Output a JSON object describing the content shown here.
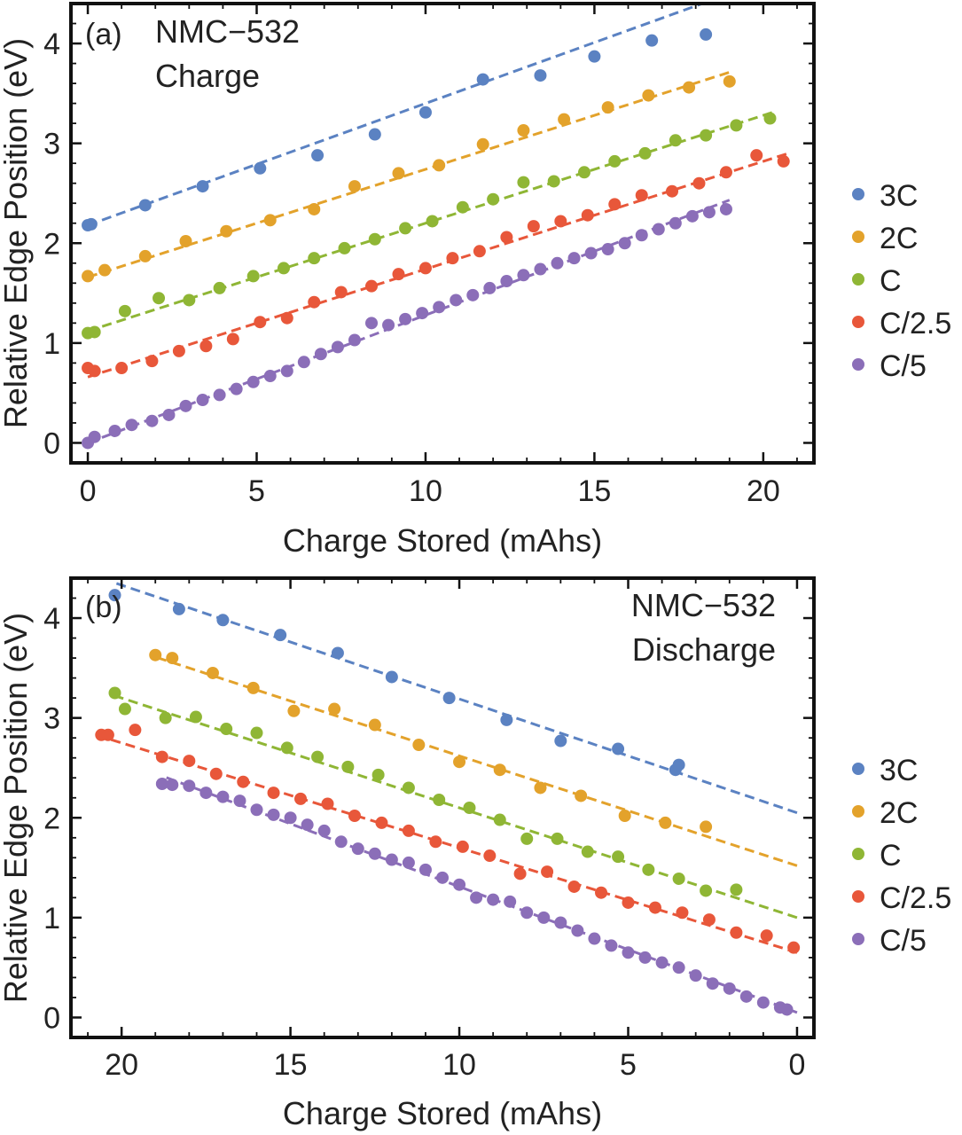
{
  "chart_data": [
    {
      "type": "scatter",
      "panel_label": "(a)",
      "annotation": [
        "NMC−532",
        "Charge"
      ],
      "xlabel": "Charge Stored (mAhs)",
      "ylabel": "Relative Edge Position (eV)",
      "xlim": [
        -0.5,
        21.5
      ],
      "ylim": [
        -0.2,
        4.4
      ],
      "x_reversed": false,
      "xticks": [
        0,
        5,
        10,
        15,
        20
      ],
      "yticks": [
        0,
        1,
        2,
        3,
        4
      ],
      "legend_position": "right",
      "series": [
        {
          "name": "3C",
          "color": "#5b82c2",
          "fit": [
            2.18,
            0.122
          ],
          "x": [
            0,
            0.1,
            1.7,
            3.4,
            5.1,
            6.8,
            8.5,
            10.0,
            11.7,
            13.4,
            15.0,
            16.7,
            18.3
          ],
          "y": [
            2.18,
            2.19,
            2.38,
            2.57,
            2.75,
            2.88,
            3.09,
            3.31,
            3.64,
            3.68,
            3.87,
            4.03,
            4.09
          ]
        },
        {
          "name": "2C",
          "color": "#e3a22b",
          "fit": [
            1.66,
            0.108
          ],
          "x": [
            0,
            0.5,
            1.7,
            2.9,
            4.1,
            5.4,
            6.7,
            7.9,
            9.2,
            10.4,
            11.7,
            12.9,
            14.1,
            15.4,
            16.6,
            17.8,
            19.0
          ],
          "y": [
            1.67,
            1.73,
            1.87,
            2.02,
            2.12,
            2.23,
            2.34,
            2.57,
            2.7,
            2.78,
            2.99,
            3.13,
            3.24,
            3.36,
            3.48,
            3.56,
            3.62
          ]
        },
        {
          "name": "C",
          "color": "#8fb635",
          "fit": [
            1.12,
            0.108
          ],
          "x": [
            0,
            0.2,
            1.1,
            2.1,
            3.0,
            3.9,
            4.9,
            5.8,
            6.7,
            7.6,
            8.5,
            9.4,
            10.2,
            11.1,
            12.0,
            12.9,
            13.8,
            14.7,
            15.6,
            16.5,
            17.4,
            18.3,
            19.2,
            20.2
          ],
          "y": [
            1.1,
            1.11,
            1.32,
            1.45,
            1.43,
            1.55,
            1.67,
            1.75,
            1.85,
            1.95,
            2.04,
            2.15,
            2.22,
            2.36,
            2.44,
            2.61,
            2.62,
            2.71,
            2.82,
            2.9,
            3.03,
            3.08,
            3.18,
            3.25
          ]
        },
        {
          "name": "C/2.5",
          "color": "#e8573a",
          "fit": [
            0.66,
            0.108
          ],
          "x": [
            0,
            0.2,
            1.0,
            1.9,
            2.7,
            3.5,
            4.3,
            5.1,
            5.9,
            6.7,
            7.5,
            8.4,
            9.2,
            10.0,
            10.8,
            11.6,
            12.4,
            13.2,
            14.0,
            14.8,
            15.6,
            16.4,
            17.3,
            18.1,
            18.9,
            19.8,
            20.6
          ],
          "y": [
            0.75,
            0.72,
            0.75,
            0.82,
            0.92,
            0.97,
            1.04,
            1.21,
            1.25,
            1.41,
            1.51,
            1.57,
            1.69,
            1.75,
            1.85,
            1.92,
            2.06,
            2.17,
            2.22,
            2.28,
            2.39,
            2.48,
            2.52,
            2.6,
            2.71,
            2.88,
            2.82
          ]
        },
        {
          "name": "C/5",
          "color": "#8b6eb8",
          "fit": [
            0.0,
            0.128
          ],
          "x": [
            0,
            0.2,
            0.8,
            1.3,
            1.9,
            2.4,
            2.9,
            3.4,
            3.9,
            4.4,
            4.9,
            5.4,
            5.9,
            6.4,
            6.9,
            7.4,
            7.9,
            8.4,
            8.9,
            9.4,
            9.9,
            10.4,
            10.9,
            11.4,
            11.9,
            12.4,
            12.9,
            13.4,
            13.9,
            14.4,
            14.9,
            15.4,
            15.9,
            16.4,
            16.9,
            17.4,
            17.9,
            18.4,
            18.9
          ],
          "y": [
            0.0,
            0.06,
            0.12,
            0.18,
            0.22,
            0.28,
            0.37,
            0.43,
            0.48,
            0.54,
            0.61,
            0.67,
            0.72,
            0.81,
            0.89,
            0.96,
            1.03,
            1.2,
            1.18,
            1.24,
            1.3,
            1.36,
            1.43,
            1.48,
            1.55,
            1.62,
            1.68,
            1.74,
            1.8,
            1.85,
            1.9,
            1.94,
            2.0,
            2.08,
            2.14,
            2.2,
            2.27,
            2.31,
            2.34
          ]
        }
      ]
    },
    {
      "type": "scatter",
      "panel_label": "(b)",
      "annotation": [
        "NMC−532",
        "Discharge"
      ],
      "xlabel": "Charge Stored (mAhs)",
      "ylabel": "Relative Edge Position (eV)",
      "xlim": [
        21.5,
        -0.5
      ],
      "ylim": [
        -0.2,
        4.4
      ],
      "x_reversed": true,
      "xticks": [
        20,
        15,
        10,
        5,
        0
      ],
      "yticks": [
        0,
        1,
        2,
        3,
        4
      ],
      "legend_position": "right",
      "series": [
        {
          "name": "3C",
          "color": "#5b82c2",
          "fit": [
            2.05,
            0.114
          ],
          "x": [
            20.2,
            18.3,
            17.0,
            15.3,
            13.6,
            12.0,
            10.3,
            8.6,
            7.0,
            5.3,
            3.6,
            3.5
          ],
          "y": [
            4.23,
            4.09,
            3.98,
            3.83,
            3.65,
            3.41,
            3.2,
            2.98,
            2.77,
            2.69,
            2.48,
            2.53
          ]
        },
        {
          "name": "2C",
          "color": "#e3a22b",
          "fit": [
            1.52,
            0.11
          ],
          "x": [
            19.0,
            18.5,
            17.3,
            16.1,
            14.9,
            13.7,
            12.5,
            11.2,
            10.0,
            8.8,
            7.6,
            6.4,
            5.1,
            3.9,
            2.7
          ],
          "y": [
            3.63,
            3.6,
            3.45,
            3.3,
            3.07,
            3.09,
            2.93,
            2.73,
            2.56,
            2.48,
            2.3,
            2.22,
            2.02,
            1.95,
            1.91
          ]
        },
        {
          "name": "C",
          "color": "#8fb635",
          "fit": [
            1.0,
            0.11
          ],
          "x": [
            20.2,
            19.9,
            18.7,
            17.8,
            16.9,
            16.0,
            15.1,
            14.2,
            13.3,
            12.4,
            11.5,
            10.6,
            9.7,
            8.8,
            8.0,
            7.1,
            6.2,
            5.3,
            4.4,
            3.5,
            2.7,
            1.8
          ],
          "y": [
            3.25,
            3.09,
            3.0,
            3.01,
            2.89,
            2.85,
            2.7,
            2.61,
            2.51,
            2.43,
            2.3,
            2.18,
            2.1,
            1.98,
            1.79,
            1.79,
            1.66,
            1.61,
            1.48,
            1.39,
            1.27,
            1.28
          ]
        },
        {
          "name": "C/2.5",
          "color": "#e8573a",
          "fit": [
            0.65,
            0.105
          ],
          "x": [
            20.6,
            20.4,
            19.6,
            18.8,
            18.0,
            17.2,
            16.4,
            15.5,
            14.7,
            13.9,
            13.1,
            12.3,
            11.5,
            10.7,
            9.9,
            9.1,
            8.2,
            7.4,
            6.6,
            5.8,
            5.0,
            4.2,
            3.4,
            2.6,
            1.8,
            0.9,
            0.1
          ],
          "y": [
            2.83,
            2.83,
            2.88,
            2.61,
            2.57,
            2.44,
            2.36,
            2.25,
            2.19,
            2.14,
            2.02,
            1.95,
            1.87,
            1.76,
            1.71,
            1.62,
            1.44,
            1.46,
            1.31,
            1.25,
            1.15,
            1.1,
            1.05,
            0.98,
            0.85,
            0.82,
            0.7
          ]
        },
        {
          "name": "C/5",
          "color": "#8b6eb8",
          "fit": [
            0.05,
            0.126
          ],
          "x": [
            18.8,
            18.5,
            18.0,
            17.5,
            17.0,
            16.5,
            16.0,
            15.5,
            15.0,
            14.5,
            14.0,
            13.5,
            13.0,
            12.5,
            12.0,
            11.5,
            11.0,
            10.5,
            10.0,
            9.5,
            9.0,
            8.5,
            8.0,
            7.5,
            7.0,
            6.5,
            6.0,
            5.5,
            5.0,
            4.5,
            4.0,
            3.5,
            3.0,
            2.5,
            2.0,
            1.5,
            1.0,
            0.5,
            0.3
          ],
          "y": [
            2.34,
            2.33,
            2.32,
            2.25,
            2.21,
            2.17,
            2.08,
            2.03,
            2.0,
            1.93,
            1.87,
            1.76,
            1.69,
            1.64,
            1.58,
            1.55,
            1.48,
            1.4,
            1.33,
            1.2,
            1.18,
            1.16,
            1.05,
            1.0,
            0.95,
            0.87,
            0.79,
            0.72,
            0.65,
            0.6,
            0.55,
            0.5,
            0.42,
            0.34,
            0.29,
            0.21,
            0.15,
            0.1,
            0.08
          ]
        }
      ]
    }
  ]
}
